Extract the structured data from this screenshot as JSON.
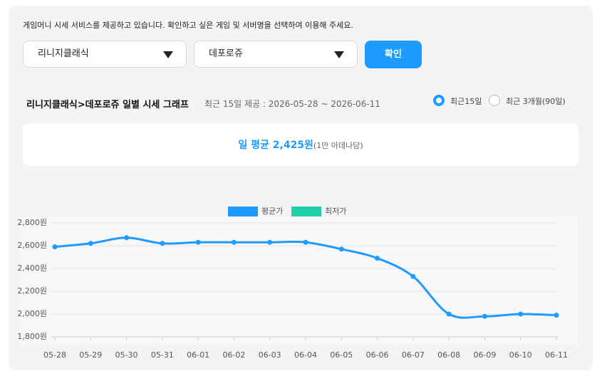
{
  "notice": "게임머니 시세 서비스를 제공하고 있습니다. 확인하고 싶은 게임 및 서버명을 선택하여 이용해 주세요.",
  "game_select": "리니지클래식",
  "server_select": "데포로쥬",
  "confirm_button": "확인",
  "heading": "리니지클래식>데포로쥬 일별 시세 그래프",
  "period_note": "최근 15일 제공 : 2026-05-28 ~ 2026-06-11",
  "radios": [
    {
      "label": "최근15일",
      "selected": true
    },
    {
      "label": "최근 3개월(90일)",
      "selected": false
    }
  ],
  "summary": {
    "average": "일 평균 2,425원",
    "unit": "(1만 아데나당)"
  },
  "chart_data": {
    "type": "line",
    "categories": [
      "05-28",
      "05-29",
      "05-30",
      "05-31",
      "06-01",
      "06-02",
      "06-03",
      "06-04",
      "06-05",
      "06-06",
      "06-07",
      "06-08",
      "06-09",
      "06-10",
      "06-11"
    ],
    "series": [
      {
        "name": "평균가",
        "color": "#1e9bff",
        "values": [
          2590,
          2620,
          2670,
          2620,
          2630,
          2630,
          2630,
          2630,
          2570,
          2490,
          2330,
          2000,
          1980,
          2000,
          1990
        ]
      },
      {
        "name": "최저가",
        "color": "#1ecfa8"
      }
    ],
    "ylim": [
      1800,
      2800
    ],
    "yticks": [
      {
        "value": 1800,
        "label": "1,800원"
      },
      {
        "value": 2000,
        "label": "2,000원"
      },
      {
        "value": 2200,
        "label": "2,200원"
      },
      {
        "value": 2400,
        "label": "2,400원"
      },
      {
        "value": 2600,
        "label": "2,600원"
      },
      {
        "value": 2800,
        "label": "2,800원"
      }
    ],
    "grid": true
  }
}
